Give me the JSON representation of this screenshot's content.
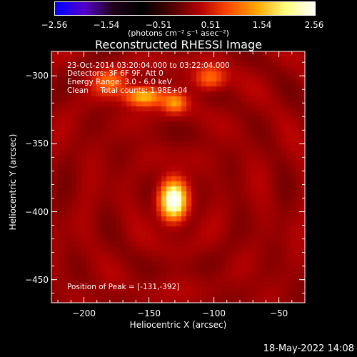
{
  "colorbar": {
    "ticks": [
      "−2.56",
      "−1.54",
      "−0.51",
      "0.51",
      "1.54",
      "2.56"
    ],
    "tick_values": [
      -2.56,
      -1.54,
      -0.51,
      0.51,
      1.54,
      2.56
    ],
    "range": [
      -2.56,
      2.56
    ],
    "unit_label": "(photons cm⁻² s⁻¹ asec⁻²)",
    "colors": [
      "#0000ff",
      "#5500cc",
      "#22001a",
      "#000000",
      "#4a0000",
      "#b40000",
      "#ff4a00",
      "#ffa800",
      "#ffff80",
      "#ffffff"
    ]
  },
  "chart_data": {
    "type": "heatmap",
    "title": "Reconstructed RHESSI Image",
    "xlabel": "Heliocentric X (arcsec)",
    "ylabel": "Heliocentric Y (arcsec)",
    "xlim": [
      -225,
      -30
    ],
    "ylim": [
      -467,
      -282
    ],
    "x_ticks": [
      -200,
      -150,
      -100,
      -50
    ],
    "y_ticks": [
      -300,
      -350,
      -400,
      -450
    ],
    "x_tick_labels": [
      "−200",
      "−150",
      "−100",
      "−50"
    ],
    "y_tick_labels": [
      "−300",
      "−350",
      "−400",
      "−450"
    ],
    "sources": [
      {
        "x": -131,
        "y": -392,
        "intensity": 1.0,
        "sx": 7,
        "sy": 10
      },
      {
        "x": -154,
        "y": -315,
        "intensity": 0.62,
        "sx": 10,
        "sy": 5
      },
      {
        "x": -130,
        "y": -320,
        "intensity": 0.42,
        "sx": 6,
        "sy": 5
      },
      {
        "x": -103,
        "y": -302,
        "intensity": 0.38,
        "sx": 8,
        "sy": 6
      },
      {
        "x": -180,
        "y": -305,
        "intensity": 0.3,
        "sx": 9,
        "sy": 7
      }
    ],
    "annotations": [
      "23-Oct-2014 03:20:04.000 to 03:22:04.000",
      "Detectors: 3F 6F 9F, Att 0",
      "Energy Range: 3.0 - 6.0 keV",
      "Clean     Total counts: 1.98E+04"
    ],
    "peak_label": "Position of Peak = [-131,-392]",
    "peak": [
      -131,
      -392
    ]
  },
  "footer": {
    "date": "18-May-2022 14:08"
  }
}
